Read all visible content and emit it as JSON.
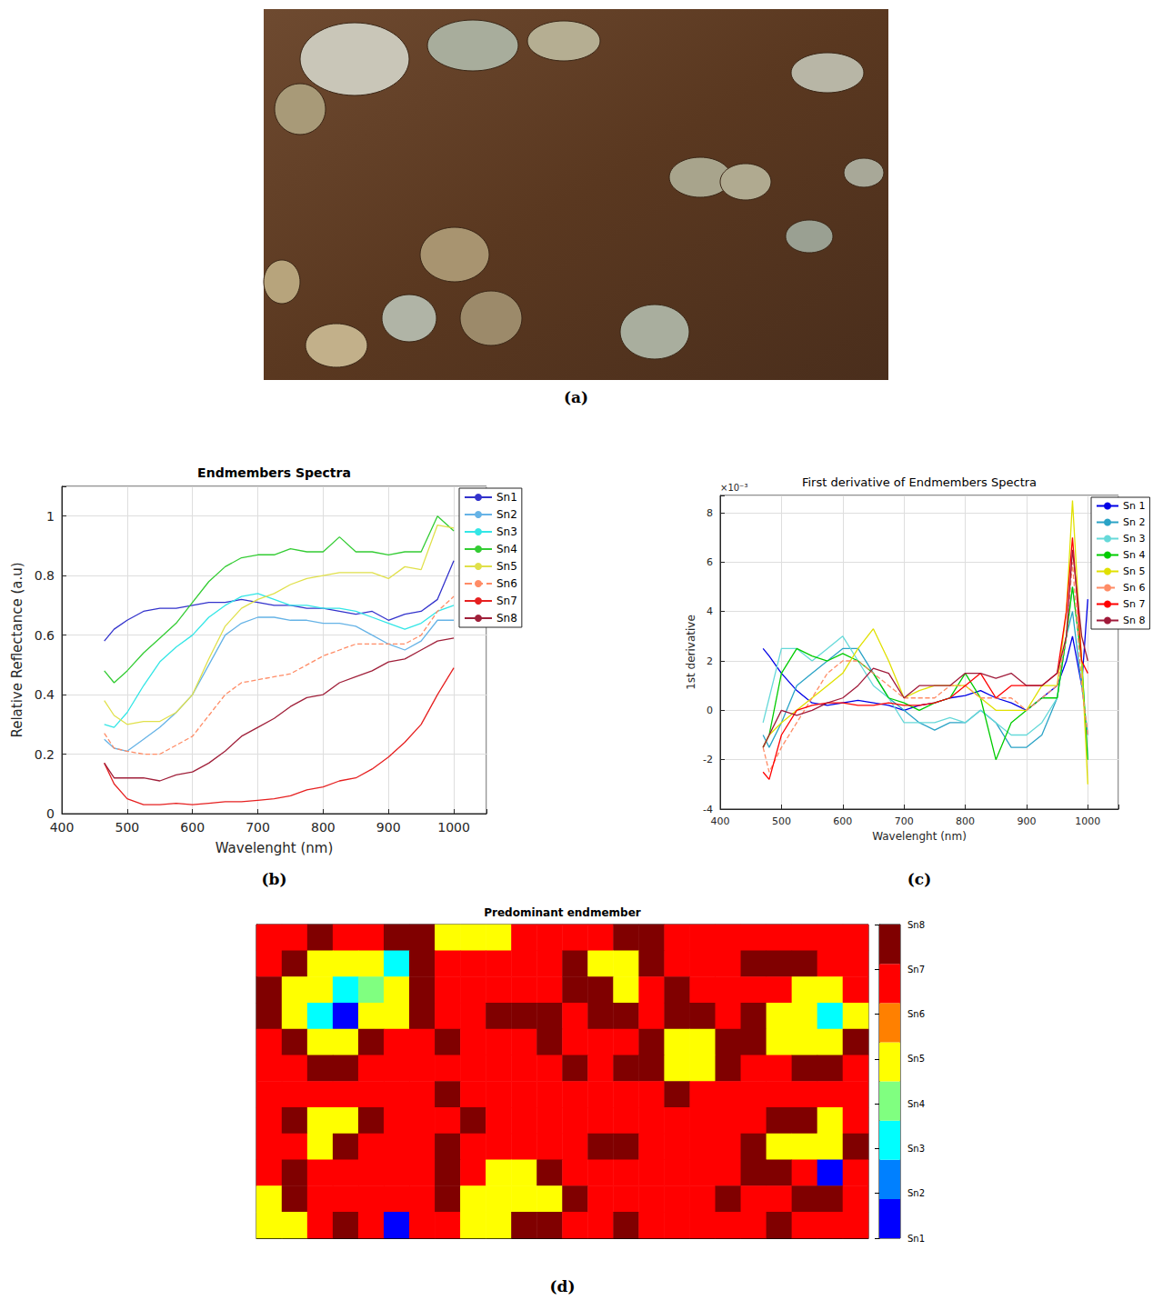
{
  "chart_data": [
    {
      "type": "image",
      "panel": "(a)"
    },
    {
      "type": "line",
      "panel": "(b)",
      "title": "Endmembers Spectra",
      "x_label": "Wavelenght (nm)",
      "y_label": "Relative Reflectance (a.u)",
      "x": [
        465,
        480,
        500,
        525,
        550,
        575,
        600,
        625,
        650,
        675,
        700,
        725,
        750,
        775,
        800,
        825,
        850,
        875,
        900,
        925,
        950,
        975,
        1000
      ],
      "series": [
        {
          "name": "Sn1",
          "color": "#3333cc",
          "line_style": "solid",
          "values": [
            0.58,
            0.62,
            0.65,
            0.68,
            0.69,
            0.69,
            0.7,
            0.71,
            0.71,
            0.72,
            0.71,
            0.7,
            0.7,
            0.69,
            0.69,
            0.68,
            0.67,
            0.68,
            0.65,
            0.67,
            0.68,
            0.72,
            0.85
          ]
        },
        {
          "name": "Sn2",
          "color": "#66b3e6",
          "line_style": "solid",
          "values": [
            0.25,
            0.22,
            0.21,
            0.25,
            0.29,
            0.34,
            0.4,
            0.5,
            0.6,
            0.64,
            0.66,
            0.66,
            0.65,
            0.65,
            0.64,
            0.64,
            0.63,
            0.6,
            0.57,
            0.55,
            0.58,
            0.65,
            0.65
          ]
        },
        {
          "name": "Sn3",
          "color": "#33e6e6",
          "line_style": "solid",
          "values": [
            0.3,
            0.29,
            0.34,
            0.43,
            0.51,
            0.56,
            0.6,
            0.66,
            0.7,
            0.73,
            0.74,
            0.72,
            0.7,
            0.7,
            0.69,
            0.69,
            0.68,
            0.66,
            0.64,
            0.62,
            0.64,
            0.68,
            0.7
          ]
        },
        {
          "name": "Sn4",
          "color": "#33cc33",
          "line_style": "solid",
          "values": [
            0.48,
            0.44,
            0.48,
            0.54,
            0.59,
            0.64,
            0.71,
            0.78,
            0.83,
            0.86,
            0.87,
            0.87,
            0.89,
            0.88,
            0.88,
            0.93,
            0.88,
            0.88,
            0.87,
            0.88,
            0.88,
            1.0,
            0.95
          ]
        },
        {
          "name": "Sn5",
          "color": "#e0e04a",
          "line_style": "solid",
          "values": [
            0.38,
            0.33,
            0.3,
            0.31,
            0.31,
            0.34,
            0.4,
            0.52,
            0.63,
            0.69,
            0.72,
            0.74,
            0.77,
            0.79,
            0.8,
            0.81,
            0.81,
            0.81,
            0.79,
            0.83,
            0.82,
            0.97,
            0.96
          ]
        },
        {
          "name": "Sn6",
          "color": "#ff8c66",
          "line_style": "dashed",
          "values": [
            0.27,
            0.22,
            0.21,
            0.2,
            0.2,
            0.23,
            0.26,
            0.33,
            0.4,
            0.44,
            0.45,
            0.46,
            0.47,
            0.5,
            0.53,
            0.55,
            0.57,
            0.57,
            0.57,
            0.57,
            0.6,
            0.68,
            0.73
          ]
        },
        {
          "name": "Sn7",
          "color": "#e62020",
          "line_style": "solid",
          "values": [
            0.17,
            0.1,
            0.05,
            0.03,
            0.03,
            0.035,
            0.03,
            0.035,
            0.04,
            0.04,
            0.045,
            0.05,
            0.06,
            0.08,
            0.09,
            0.11,
            0.12,
            0.15,
            0.19,
            0.24,
            0.3,
            0.4,
            0.49
          ]
        },
        {
          "name": "Sn8",
          "color": "#a0203a",
          "line_style": "solid",
          "values": [
            0.17,
            0.12,
            0.12,
            0.12,
            0.11,
            0.13,
            0.14,
            0.17,
            0.21,
            0.26,
            0.29,
            0.32,
            0.36,
            0.39,
            0.4,
            0.44,
            0.46,
            0.48,
            0.51,
            0.52,
            0.55,
            0.58,
            0.59
          ]
        }
      ],
      "xlim": [
        400,
        1050
      ],
      "xticks": [
        400,
        500,
        600,
        700,
        800,
        900,
        1000
      ],
      "ylim": [
        0,
        1.1
      ],
      "yticks": [
        0,
        0.2,
        0.4,
        0.6,
        0.8,
        1
      ],
      "grid": true,
      "legend": "upper right"
    },
    {
      "type": "line",
      "panel": "(c)",
      "title": "First derivative of Endmembers Spectra",
      "annotation": "×10⁻³",
      "x_label": "Wavelenght (nm)",
      "y_label": "1st derivative",
      "x": [
        470,
        480,
        500,
        525,
        550,
        575,
        600,
        625,
        650,
        675,
        700,
        725,
        750,
        775,
        800,
        825,
        850,
        875,
        900,
        925,
        950,
        965,
        975,
        990,
        1000
      ],
      "series": [
        {
          "name": "Sn 1",
          "color": "#0000e6",
          "line_style": "solid",
          "values": [
            2.5,
            2.2,
            1.5,
            0.8,
            0.3,
            0.2,
            0.3,
            0.4,
            0.3,
            0.2,
            0,
            0.2,
            0.3,
            0.5,
            0.6,
            0.8,
            0.5,
            0.3,
            0,
            0.5,
            1.0,
            2,
            3,
            1,
            4.5
          ]
        },
        {
          "name": "Sn 2",
          "color": "#2aa3c6",
          "line_style": "solid",
          "values": [
            -1,
            -1.5,
            -0.5,
            1,
            1.5,
            2,
            2.5,
            2.5,
            1.5,
            0.5,
            0,
            -0.5,
            -0.8,
            -0.5,
            -0.5,
            0,
            -0.5,
            -1.5,
            -1.5,
            -1,
            0.5,
            3,
            4,
            1,
            -1
          ]
        },
        {
          "name": "Sn 3",
          "color": "#66d9d9",
          "line_style": "solid",
          "values": [
            -0.5,
            0.5,
            2.5,
            2.5,
            2,
            2.5,
            3,
            2,
            1,
            0.5,
            -0.5,
            -0.5,
            -0.5,
            -0.3,
            -0.5,
            0,
            -0.5,
            -1,
            -1,
            -0.5,
            0.5,
            3,
            5,
            2,
            -2
          ]
        },
        {
          "name": "Sn 4",
          "color": "#00cc00",
          "line_style": "solid",
          "values": [
            -1.5,
            -1,
            1.5,
            2.5,
            2.2,
            2,
            2.3,
            2,
            1.5,
            0.5,
            0.3,
            0,
            0.3,
            0.5,
            1.5,
            0.5,
            -2,
            -0.5,
            0,
            0.5,
            0.5,
            3,
            5,
            2,
            -2
          ]
        },
        {
          "name": "Sn 5",
          "color": "#e0e000",
          "line_style": "solid",
          "values": [
            -1.5,
            -1,
            -0.5,
            0,
            0.5,
            1,
            1.5,
            2.5,
            3.3,
            2,
            0.5,
            0.8,
            1,
            1,
            1,
            0.5,
            0,
            0,
            0,
            1,
            1,
            4,
            8.5,
            2,
            -3
          ]
        },
        {
          "name": "Sn 6",
          "color": "#ff8c66",
          "line_style": "dashed",
          "values": [
            -1.5,
            -2.5,
            -1.5,
            -0.5,
            0.5,
            1.5,
            2,
            2,
            1.5,
            1,
            0.5,
            0.5,
            0.5,
            1,
            1,
            0.5,
            0.5,
            0.5,
            0,
            0.5,
            1,
            3,
            6,
            1,
            -1
          ]
        },
        {
          "name": "Sn 7",
          "color": "#ff0000",
          "line_style": "solid",
          "values": [
            -2.5,
            -2.8,
            -1,
            0,
            0.2,
            0.3,
            0.3,
            0.2,
            0.2,
            0.3,
            0.2,
            0.2,
            0.3,
            0.5,
            1,
            1.5,
            0.5,
            1,
            1,
            1,
            1.5,
            4,
            7,
            2,
            1.5
          ]
        },
        {
          "name": "Sn 8",
          "color": "#a01a3a",
          "line_style": "solid",
          "values": [
            -1.5,
            -1,
            0,
            -0.2,
            0,
            0.3,
            0.5,
            1,
            1.7,
            1.5,
            0.5,
            1,
            1,
            1,
            1.5,
            1.5,
            1.3,
            1.5,
            1,
            1,
            1.5,
            3,
            6.5,
            3,
            2
          ]
        }
      ],
      "xlim": [
        400,
        1050
      ],
      "xticks": [
        400,
        500,
        600,
        700,
        800,
        900,
        1000
      ],
      "ylim": [
        -4,
        8.7
      ],
      "yticks": [
        -4,
        -2,
        0,
        2,
        4,
        6,
        8
      ],
      "grid": true,
      "legend": "upper right"
    },
    {
      "type": "heatmap",
      "panel": "(d)",
      "title": "Predominant endmember",
      "tick_labels": false,
      "cells": [
        [
          7,
          7,
          8,
          7,
          7,
          8,
          8,
          5,
          5,
          5,
          7,
          7,
          7,
          7,
          8,
          8,
          7,
          7,
          7,
          7,
          7,
          7,
          7,
          7
        ],
        [
          7,
          8,
          5,
          5,
          5,
          3,
          8,
          7,
          7,
          7,
          7,
          7,
          8,
          5,
          5,
          8,
          7,
          7,
          7,
          8,
          8,
          8,
          7,
          7
        ],
        [
          8,
          5,
          5,
          3,
          4,
          5,
          8,
          7,
          7,
          7,
          7,
          7,
          8,
          8,
          5,
          7,
          8,
          7,
          7,
          7,
          7,
          5,
          5,
          7
        ],
        [
          8,
          5,
          3,
          1,
          5,
          5,
          8,
          7,
          7,
          8,
          8,
          8,
          7,
          8,
          8,
          7,
          8,
          8,
          7,
          8,
          5,
          5,
          3,
          5
        ],
        [
          7,
          8,
          5,
          5,
          8,
          7,
          7,
          8,
          7,
          7,
          7,
          8,
          7,
          7,
          7,
          8,
          5,
          5,
          8,
          8,
          5,
          5,
          5,
          8
        ],
        [
          7,
          7,
          8,
          8,
          7,
          7,
          7,
          7,
          7,
          7,
          7,
          7,
          8,
          7,
          8,
          8,
          5,
          5,
          8,
          7,
          7,
          8,
          8,
          7
        ],
        [
          7,
          7,
          7,
          7,
          7,
          7,
          7,
          8,
          7,
          7,
          7,
          7,
          7,
          7,
          7,
          7,
          8,
          7,
          7,
          7,
          7,
          7,
          7,
          7
        ],
        [
          7,
          8,
          5,
          5,
          8,
          7,
          7,
          7,
          8,
          7,
          7,
          7,
          7,
          7,
          7,
          7,
          7,
          7,
          7,
          7,
          8,
          8,
          5,
          7
        ],
        [
          7,
          7,
          5,
          8,
          7,
          7,
          7,
          8,
          7,
          7,
          7,
          7,
          7,
          8,
          8,
          7,
          7,
          7,
          7,
          8,
          5,
          5,
          5,
          8
        ],
        [
          7,
          8,
          7,
          7,
          7,
          7,
          7,
          8,
          7,
          5,
          5,
          8,
          7,
          7,
          7,
          7,
          7,
          7,
          7,
          8,
          8,
          7,
          1,
          7
        ],
        [
          5,
          8,
          7,
          7,
          7,
          7,
          7,
          8,
          5,
          5,
          5,
          5,
          8,
          7,
          7,
          7,
          7,
          7,
          8,
          7,
          7,
          8,
          8,
          7
        ],
        [
          5,
          5,
          7,
          8,
          7,
          1,
          7,
          7,
          5,
          5,
          8,
          8,
          7,
          7,
          8,
          7,
          7,
          7,
          7,
          7,
          8,
          7,
          7,
          7
        ]
      ],
      "colorbar_ticks": [
        {
          "value": 1,
          "label": "Sn1"
        },
        {
          "value": 2,
          "label": "Sn2"
        },
        {
          "value": 3,
          "label": "Sn3"
        },
        {
          "value": 4,
          "label": "Sn4"
        },
        {
          "value": 5,
          "label": "Sn5"
        },
        {
          "value": 6,
          "label": "Sn6"
        },
        {
          "value": 7,
          "label": "Sn7"
        },
        {
          "value": 8,
          "label": "Sn8"
        }
      ],
      "colorbar_colors": [
        "#0000ff",
        "#0080ff",
        "#00ffff",
        "#80ff80",
        "#ffff00",
        "#ff8000",
        "#ff0000",
        "#800000"
      ]
    }
  ]
}
